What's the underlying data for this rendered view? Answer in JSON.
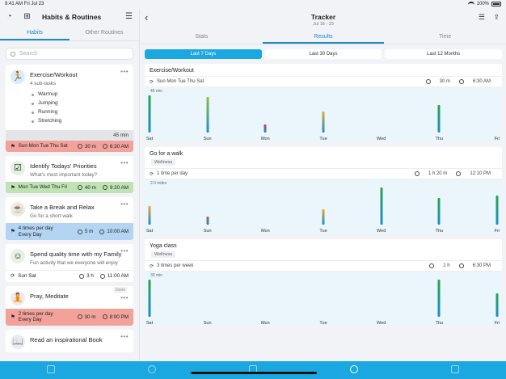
{
  "status": {
    "time": "9:41 AM  Fri Jul 23",
    "battery": "100%"
  },
  "left": {
    "title": "Habits & Routines",
    "tabs": [
      "Habits",
      "Other Routines"
    ],
    "search_placeholder": "Search",
    "habits": [
      {
        "name": "Exercise/Workout",
        "sub": "4 sub-tasks",
        "subtasks": [
          "Warmup",
          "Jumping",
          "Running",
          "Stretching"
        ],
        "duration": "45 min",
        "days": "Sun Mon Tue Thu Sat",
        "dur": "30 m",
        "time": "6:30 AM",
        "color": "red",
        "icon": "person-icon"
      },
      {
        "name": "Identify Todays' Priorities",
        "sub": "What's most important today?",
        "days": "Mon Tue Wed Thu Fri",
        "dur": "40 m",
        "time": "9:20 AM",
        "color": "green",
        "icon": "checklist-icon"
      },
      {
        "name": "Take a Break and Relax",
        "sub": "Go for a short walk",
        "days": "4 times per day",
        "days2": "Every Day",
        "dur": "5 m",
        "time": "10:00 AM",
        "color": "blue",
        "icon": "coffee-icon"
      },
      {
        "name": "Spend quality time with my Family",
        "sub": "Fun activity that we everyone will enjoy",
        "days": "Sun Sat",
        "dur": "3 h",
        "time": "11:00 AM",
        "color": "white",
        "icon": "family-icon"
      },
      {
        "name": "Pray, Meditate",
        "badge": "Done",
        "days": "2 times per day",
        "days2": "Every Day",
        "dur": "30 m",
        "time": "8:00 PM",
        "color": "red",
        "icon": "meditate-icon"
      },
      {
        "name": "Read an inspirational Book",
        "icon": "book-icon"
      }
    ]
  },
  "right": {
    "title": "Tracker",
    "range": "Jul 16 - 23",
    "tabs": [
      "Stats",
      "Results",
      "Time"
    ],
    "periods": [
      "Last 7 Days",
      "Last 30 Days",
      "Last 12 Months"
    ],
    "sections": [
      {
        "title": "Exercise/Workout",
        "freq": "Sun Mon Tue Thu Sat",
        "dur": "30 m",
        "time": "6:30 AM",
        "ylabel": "45 min"
      },
      {
        "title": "Go for a walk",
        "tag": "Wellness",
        "freq": "1 time per day",
        "dur": "1 h 20 m",
        "time": "12:10 PM",
        "ylabel": "2.0 miles"
      },
      {
        "title": "Yoga class",
        "tag": "Wellness",
        "freq": "3 times per week",
        "dur": "1 h",
        "time": "6:30 PM",
        "ylabel": "30 min"
      }
    ],
    "days": [
      "Sat",
      "Sun",
      "Mon",
      "Tue",
      "Wed",
      "Thu",
      "Fri"
    ]
  },
  "chart_data": [
    {
      "type": "bar",
      "categories": [
        "Sat",
        "Sun",
        "Mon",
        "Tue",
        "Wed",
        "Thu",
        "Fri"
      ],
      "values": [
        45,
        43,
        10,
        25,
        0,
        33,
        0
      ],
      "colors": [
        "#2aa64a",
        "#8fbf3a",
        "#c0397b",
        "#e6a92b",
        "#2aa64a",
        "#2aa64a",
        "#2aa64a"
      ],
      "ylim": [
        0,
        45
      ]
    },
    {
      "type": "bar",
      "categories": [
        "Sat",
        "Sun",
        "Mon",
        "Tue",
        "Wed",
        "Thu",
        "Fri"
      ],
      "values": [
        1.1,
        0.5,
        0,
        0.9,
        2.2,
        1.6,
        1.7
      ],
      "colors": [
        "#e6a92b",
        "#c0603b",
        "#2aa64a",
        "#e6a92b",
        "#2aa64a",
        "#2aa64a",
        "#2aa64a"
      ],
      "ylim": [
        0,
        2.2
      ]
    },
    {
      "type": "bar",
      "categories": [
        "Sat",
        "Sun",
        "Mon",
        "Tue",
        "Wed",
        "Thu",
        "Fri"
      ],
      "values": [
        30,
        0,
        0,
        0,
        0,
        30,
        19
      ],
      "colors": [
        "#2aa64a",
        "#2aa64a",
        "#2aa64a",
        "#2aa64a",
        "#2aa64a",
        "#2aa64a",
        "#2aa64a"
      ],
      "ylim": [
        0,
        30
      ]
    }
  ]
}
